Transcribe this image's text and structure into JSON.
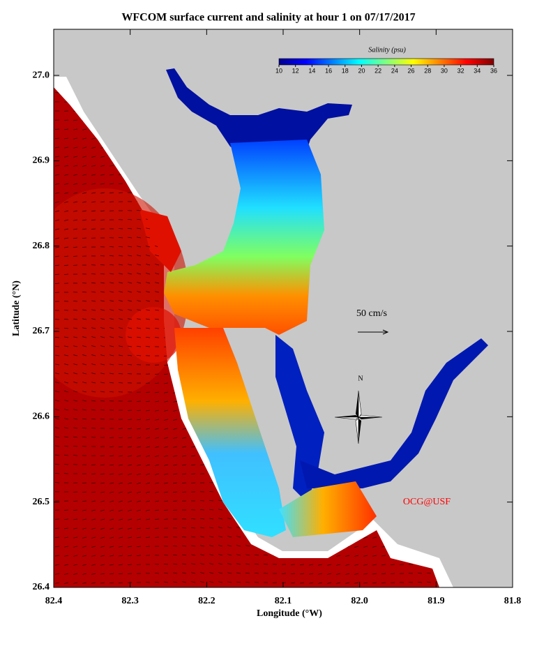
{
  "title": "WFCOM surface current and salinity at hour 1 on 07/17/2017",
  "map": {
    "x_label": "Longitude (°W)",
    "y_label": "Latitude (°N)",
    "xlim": [
      82.4,
      81.8
    ],
    "ylim": [
      26.4,
      27.054
    ],
    "xticks": [
      82.4,
      82.3,
      82.2,
      82.1,
      {
        "value": 82,
        "label": "82.0"
      },
      81.9,
      81.8
    ],
    "yticks": [
      26.4,
      26.5,
      26.6,
      26.7,
      26.8,
      26.9,
      {
        "value": 27,
        "label": "27.0"
      }
    ]
  },
  "colorbar": {
    "title": "Salinity (psu)",
    "range": [
      10,
      36
    ],
    "ticks": [
      10,
      12,
      14,
      16,
      18,
      20,
      22,
      24,
      26,
      28,
      30,
      32,
      34,
      36
    ],
    "colors": [
      "#00008f",
      "#0000ff",
      "#0080ff",
      "#00ffff",
      "#80ff80",
      "#ffff00",
      "#ff8000",
      "#ff0000",
      "#800000"
    ]
  },
  "scale_label": "50 cm/s",
  "compass_label": "N",
  "credit": "OCG@USF"
}
